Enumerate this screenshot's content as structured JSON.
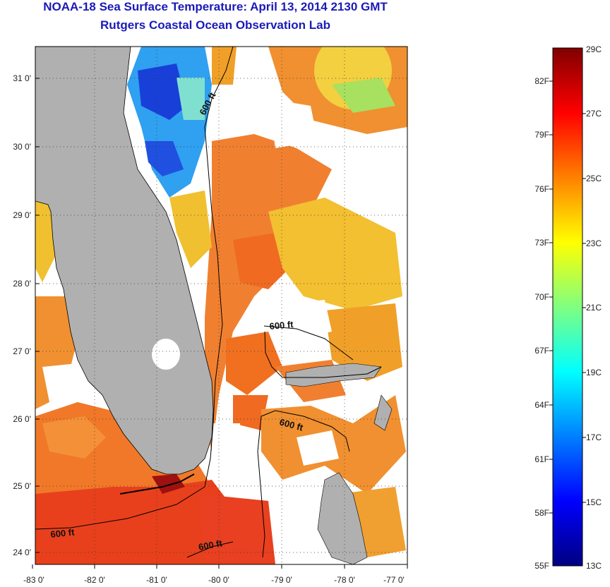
{
  "title": "NOAA-18 Sea Surface Temperature:  April 13, 2014 2130 GMT",
  "subtitle": "Rutgers Coastal Ocean Observation Lab",
  "map": {
    "lat_ticks": [
      "31 0'",
      "30 0'",
      "29 0'",
      "28 0'",
      "27 0'",
      "26 0'",
      "25 0'",
      "24 0'"
    ],
    "lon_ticks": [
      "-83 0'",
      "-82 0'",
      "-81 0'",
      "-80 0'",
      "-79 0'",
      "-78 0'",
      "-77 0'"
    ],
    "contour_labels": [
      "600 ft",
      "600 ft",
      "600 ft",
      "600 ft",
      "600 ft"
    ],
    "colors": {
      "land": "#b0b0b0",
      "cloud": "#ffffff",
      "frame": "#000000"
    }
  },
  "colorbar": {
    "celsius": [
      "29C",
      "27C",
      "25C",
      "23C",
      "21C",
      "19C",
      "17C",
      "15C",
      "13C"
    ],
    "fahrenheit": [
      "82F",
      "79F",
      "76F",
      "73F",
      "70F",
      "67F",
      "64F",
      "61F",
      "58F",
      "55F"
    ],
    "colors": [
      "#000080",
      "#0000ff",
      "#0080ff",
      "#00ffff",
      "#80ff80",
      "#ffff00",
      "#ff8000",
      "#ff0000",
      "#800000"
    ]
  }
}
